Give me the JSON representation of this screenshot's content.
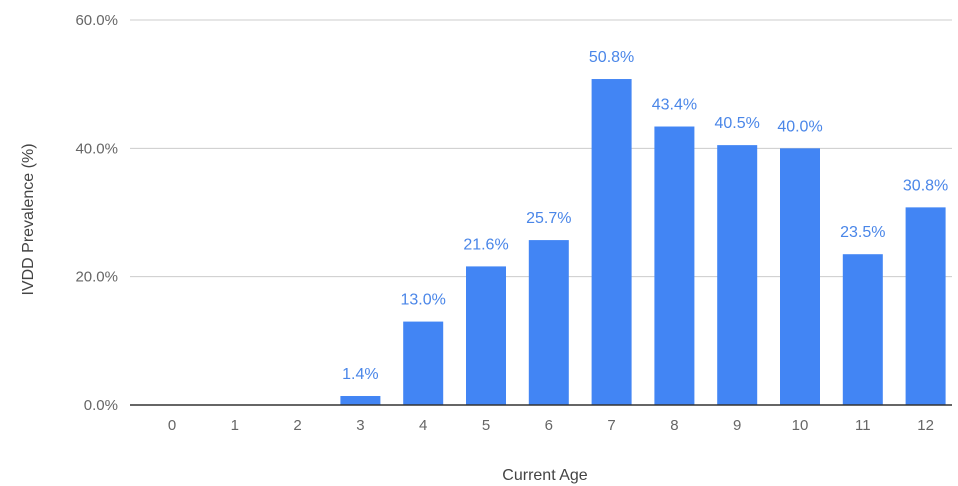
{
  "chart_data": {
    "type": "bar",
    "title": "",
    "xlabel": "Current Age",
    "ylabel": "IVDD Prevalence (%)",
    "categories": [
      "0",
      "1",
      "2",
      "3",
      "4",
      "5",
      "6",
      "7",
      "8",
      "9",
      "10",
      "11",
      "12"
    ],
    "values": [
      0,
      0,
      0,
      1.4,
      13.0,
      21.6,
      25.7,
      50.8,
      43.4,
      40.5,
      40.0,
      23.5,
      30.8
    ],
    "data_labels": [
      "",
      "",
      "",
      "1.4%",
      "13.0%",
      "21.6%",
      "25.7%",
      "50.8%",
      "43.4%",
      "40.5%",
      "40.0%",
      "23.5%",
      "30.8%"
    ],
    "ylim": [
      0,
      60
    ],
    "yticks": [
      0,
      20,
      40,
      60
    ],
    "ytick_labels": [
      "0.0%",
      "20.0%",
      "40.0%",
      "60.0%"
    ],
    "grid": true,
    "legend": "none",
    "colors": {
      "bar": "#4285f4",
      "data_label": "#4a86e8",
      "grid": "#cccccc",
      "axis": "#333333"
    }
  }
}
